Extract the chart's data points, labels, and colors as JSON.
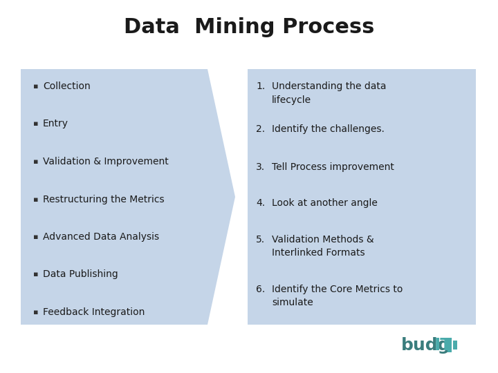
{
  "title": "Data  Mining Process",
  "title_fontsize": 22,
  "title_fontweight": "bold",
  "bg_color": "#ffffff",
  "panel_color": "#c5d5e8",
  "left_items": [
    "Collection",
    "Entry",
    "Validation & Improvement",
    "Restructuring the Metrics",
    "Advanced Data Analysis",
    "Data Publishing",
    "Feedback Integration"
  ],
  "right_items_num": [
    "1.",
    "2.",
    "3.",
    "4.",
    "5.",
    "6."
  ],
  "right_items_text": [
    "Understanding the data\nlifecycle",
    "Identify the challenges.",
    "Tell Process improvement",
    "Look at another angle",
    "Validation Methods &\nInterlinked Formats",
    "Identify the Core Metrics to\nsimulate"
  ],
  "bullet_char": "▪",
  "item_fontsize": 10,
  "logo_color_main": "#3a7d7d",
  "logo_color_it": "#4aabab"
}
